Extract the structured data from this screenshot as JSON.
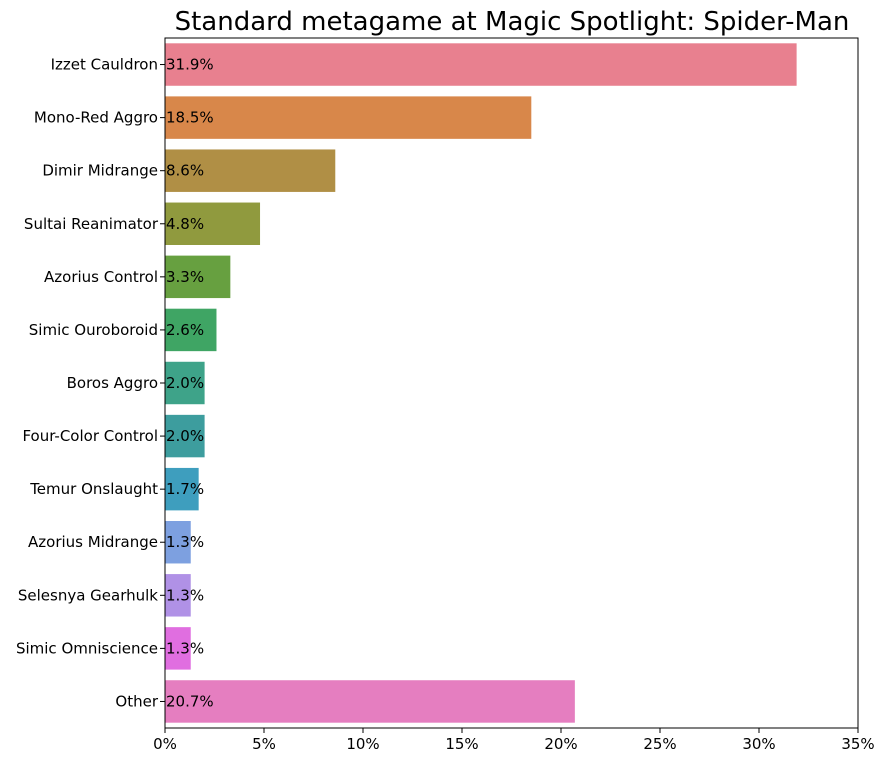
{
  "chart_data": {
    "type": "bar",
    "orientation": "horizontal",
    "title": "Standard metagame at Magic Spotlight: Spider-Man",
    "xlabel": "",
    "ylabel": "",
    "categories": [
      "Izzet Cauldron",
      "Mono-Red Aggro",
      "Dimir Midrange",
      "Sultai Reanimator",
      "Azorius Control",
      "Simic Ouroboroid",
      "Boros Aggro",
      "Four-Color Control",
      "Temur Onslaught",
      "Azorius Midrange",
      "Selesnya Gearhulk",
      "Simic Omniscience",
      "Other"
    ],
    "values": [
      31.9,
      18.5,
      8.6,
      4.8,
      3.3,
      2.6,
      2.0,
      2.0,
      1.7,
      1.3,
      1.3,
      1.3,
      20.7
    ],
    "value_labels": [
      "31.9%",
      "18.5%",
      "8.6%",
      "4.8%",
      "3.3%",
      "2.6%",
      "2.0%",
      "2.0%",
      "1.7%",
      "1.3%",
      "1.3%",
      "1.3%",
      "20.7%"
    ],
    "colors": [
      "#e8808f",
      "#d8874a",
      "#b08f45",
      "#909a3e",
      "#67a040",
      "#3fa564",
      "#3ea389",
      "#3d9d9e",
      "#3e9ebe",
      "#7da0e0",
      "#b091e6",
      "#e06ee0",
      "#e57ec0"
    ],
    "xlim": [
      0,
      35
    ],
    "xticks": [
      0,
      5,
      10,
      15,
      20,
      25,
      30,
      35
    ],
    "xtick_labels": [
      "0%",
      "5%",
      "10%",
      "15%",
      "20%",
      "25%",
      "30%",
      "35%"
    ],
    "grid": false,
    "legend": "none"
  }
}
